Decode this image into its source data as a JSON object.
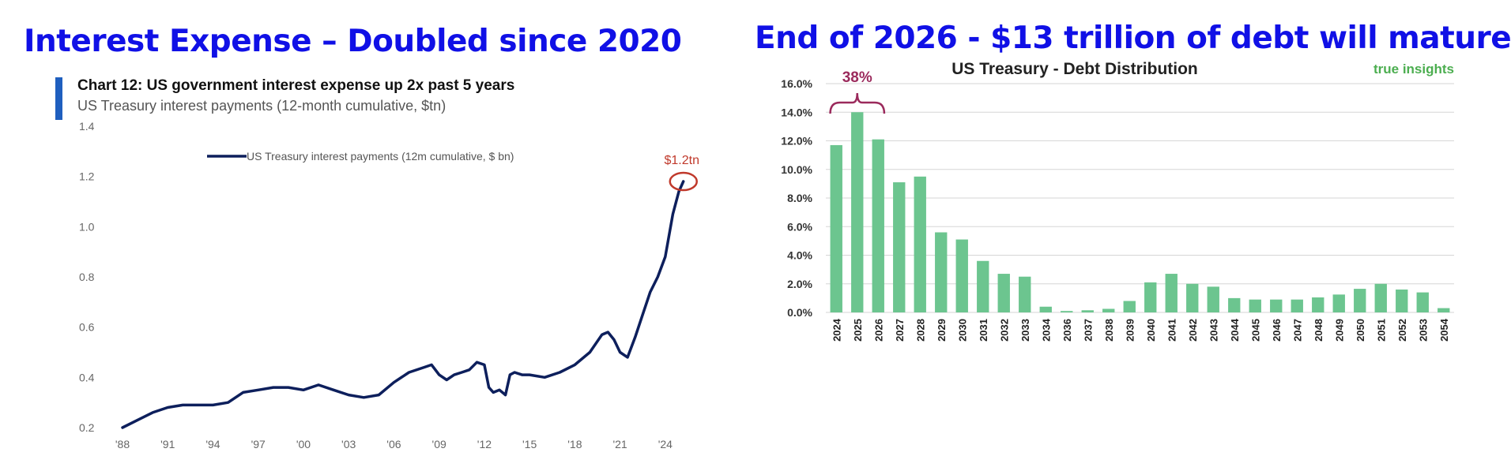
{
  "headlines": {
    "left": "Interest Expense – Doubled since 2020",
    "right": "End of 2026 - $13 trillion of debt will mature"
  },
  "colors": {
    "headline": "#1010e6",
    "line": "#0d1f5c",
    "accent_bar": "#1f5fbf",
    "callout": "#c0392b",
    "bar": "#6cc58f",
    "bracket": "#9b2a5c",
    "brand": "#4cae50"
  },
  "left_panel": {
    "heading": "Chart 12: US government interest expense up 2x past 5 years",
    "subheading": "US Treasury interest payments (12-month cumulative, $tn)"
  },
  "right_panel": {
    "brand": "true insights"
  },
  "chart_data": [
    {
      "type": "line",
      "legend_position": "top-center",
      "grid": false,
      "ylim": [
        0.2,
        1.4
      ],
      "yticks": [
        0.2,
        0.4,
        0.6,
        0.8,
        1.0,
        1.2,
        1.4
      ],
      "ytick_labels": [
        "0.2",
        "0.4",
        "0.6",
        "0.8",
        "1.0",
        "1.2",
        "1.4"
      ],
      "xlim": [
        1988,
        2026
      ],
      "xticks": [
        1988,
        1991,
        1994,
        1997,
        2000,
        2003,
        2006,
        2009,
        2012,
        2015,
        2018,
        2021,
        2024
      ],
      "xtick_labels": [
        "'88",
        "'91",
        "'94",
        "'97",
        "'00",
        "'03",
        "'06",
        "'09",
        "'12",
        "'15",
        "'18",
        "'21",
        "'24"
      ],
      "annotation": "$1.2tn",
      "series": [
        {
          "name": "US Treasury interest payments (12m cumulative, $ bn)",
          "x": [
            1988,
            1989,
            1990,
            1991,
            1992,
            1993,
            1994,
            1995,
            1996,
            1997,
            1998,
            1999,
            2000,
            2001,
            2002,
            2003,
            2004,
            2005,
            2006,
            2007,
            2008,
            2008.5,
            2009,
            2009.5,
            2010,
            2010.5,
            2011,
            2011.5,
            2012,
            2012.3,
            2012.6,
            2013,
            2013.4,
            2013.7,
            2014,
            2014.5,
            2015,
            2016,
            2017,
            2018,
            2019,
            2019.8,
            2020.2,
            2020.6,
            2021,
            2021.5,
            2022,
            2022.5,
            2023,
            2023.5,
            2024,
            2024.5,
            2024.9,
            2025.2
          ],
          "y": [
            0.2,
            0.23,
            0.26,
            0.28,
            0.29,
            0.29,
            0.29,
            0.3,
            0.34,
            0.35,
            0.36,
            0.36,
            0.35,
            0.37,
            0.35,
            0.33,
            0.32,
            0.33,
            0.38,
            0.42,
            0.44,
            0.45,
            0.41,
            0.39,
            0.41,
            0.42,
            0.43,
            0.46,
            0.45,
            0.36,
            0.34,
            0.35,
            0.33,
            0.41,
            0.42,
            0.41,
            0.41,
            0.4,
            0.42,
            0.45,
            0.5,
            0.57,
            0.58,
            0.55,
            0.5,
            0.48,
            0.56,
            0.65,
            0.74,
            0.8,
            0.88,
            1.05,
            1.14,
            1.18
          ]
        }
      ]
    },
    {
      "type": "bar",
      "title": "US Treasury - Debt Distribution",
      "legend_position": "none",
      "grid": true,
      "ylim": [
        0,
        16
      ],
      "yticks": [
        0,
        2,
        4,
        6,
        8,
        10,
        12,
        14,
        16
      ],
      "ytick_labels": [
        "0.0%",
        "2.0%",
        "4.0%",
        "6.0%",
        "8.0%",
        "10.0%",
        "12.0%",
        "14.0%",
        "16.0%"
      ],
      "categories": [
        "2024",
        "2025",
        "2026",
        "2027",
        "2028",
        "2029",
        "2030",
        "2031",
        "2032",
        "2033",
        "2034",
        "2036",
        "2037",
        "2038",
        "2039",
        "2040",
        "2041",
        "2042",
        "2043",
        "2044",
        "2045",
        "2046",
        "2047",
        "2048",
        "2049",
        "2050",
        "2051",
        "2052",
        "2053",
        "2054"
      ],
      "values": [
        11.7,
        14.0,
        12.1,
        9.1,
        9.5,
        5.6,
        5.1,
        3.6,
        2.7,
        2.5,
        0.4,
        0.1,
        0.15,
        0.25,
        0.8,
        2.1,
        2.7,
        2.0,
        1.8,
        1.0,
        0.9,
        0.9,
        0.9,
        1.05,
        1.25,
        1.65,
        2.0,
        1.6,
        1.4,
        0.3
      ],
      "annotation": "38%"
    }
  ]
}
